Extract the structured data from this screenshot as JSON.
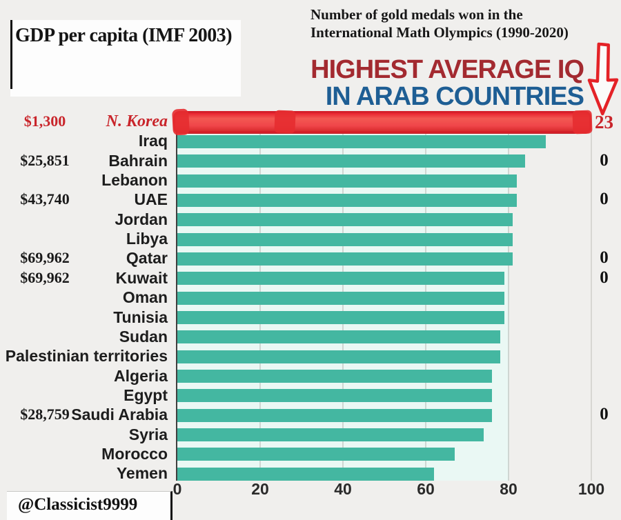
{
  "page": {
    "gdp_box_title": "GDP per capita (IMF 2003)",
    "medals_note_line1": "Number of gold medals won in the",
    "medals_note_line2": "International Math Olympics (1990-2020)",
    "title_line1": "HIGHEST AVERAGE IQ",
    "title_line2": "IN ARAB COUNTRIES",
    "watermark": "@Classicist9999"
  },
  "colors": {
    "page_bg": "#f0efed",
    "panel_mint": "#eaf8f4",
    "bar_teal": "#44b7a1",
    "highlight_red": "#e9232f",
    "annotation_red": "#c9252b",
    "title_red": "#a32a30",
    "title_blue": "#1e5e94"
  },
  "icons": {
    "down_arrow": "hand-drawn red outlined arrow pointing down at the N. Korea medal count"
  },
  "chart_data": {
    "type": "bar",
    "orientation": "horizontal",
    "title": "HIGHEST AVERAGE IQ IN ARAB COUNTRIES",
    "value_implied": "Average IQ",
    "xlim": [
      0,
      100
    ],
    "x_ticks": [
      "0",
      "20",
      "40",
      "60",
      "80",
      "100"
    ],
    "grid": true,
    "left_annotation_column": "GDP per capita (IMF 2003)",
    "right_annotation_column": "Number of gold medals won in the International Math Olympics (1990-2020)",
    "rows": [
      {
        "country": "N. Korea",
        "iq": 100,
        "gdp": "$1,300",
        "medals": "23",
        "highlight": true
      },
      {
        "country": "Iraq",
        "iq": 89
      },
      {
        "country": "Bahrain",
        "iq": 84,
        "gdp": "$25,851",
        "medals": "0"
      },
      {
        "country": "Lebanon",
        "iq": 82
      },
      {
        "country": "UAE",
        "iq": 82,
        "gdp": "$43,740",
        "medals": "0"
      },
      {
        "country": "Jordan",
        "iq": 81
      },
      {
        "country": "Libya",
        "iq": 81
      },
      {
        "country": "Qatar",
        "iq": 81,
        "gdp": "$69,962",
        "medals": "0"
      },
      {
        "country": "Kuwait",
        "iq": 79,
        "gdp": "$69,962",
        "medals": "0"
      },
      {
        "country": "Oman",
        "iq": 79
      },
      {
        "country": "Tunisia",
        "iq": 79
      },
      {
        "country": "Sudan",
        "iq": 78
      },
      {
        "country": "Palestinian territories",
        "iq": 78
      },
      {
        "country": "Algeria",
        "iq": 76
      },
      {
        "country": "Egypt",
        "iq": 76
      },
      {
        "country": "Saudi Arabia",
        "iq": 76,
        "gdp": "$28,759",
        "medals": "0"
      },
      {
        "country": "Syria",
        "iq": 74
      },
      {
        "country": "Morocco",
        "iq": 67
      },
      {
        "country": "Yemen",
        "iq": 62
      }
    ]
  }
}
